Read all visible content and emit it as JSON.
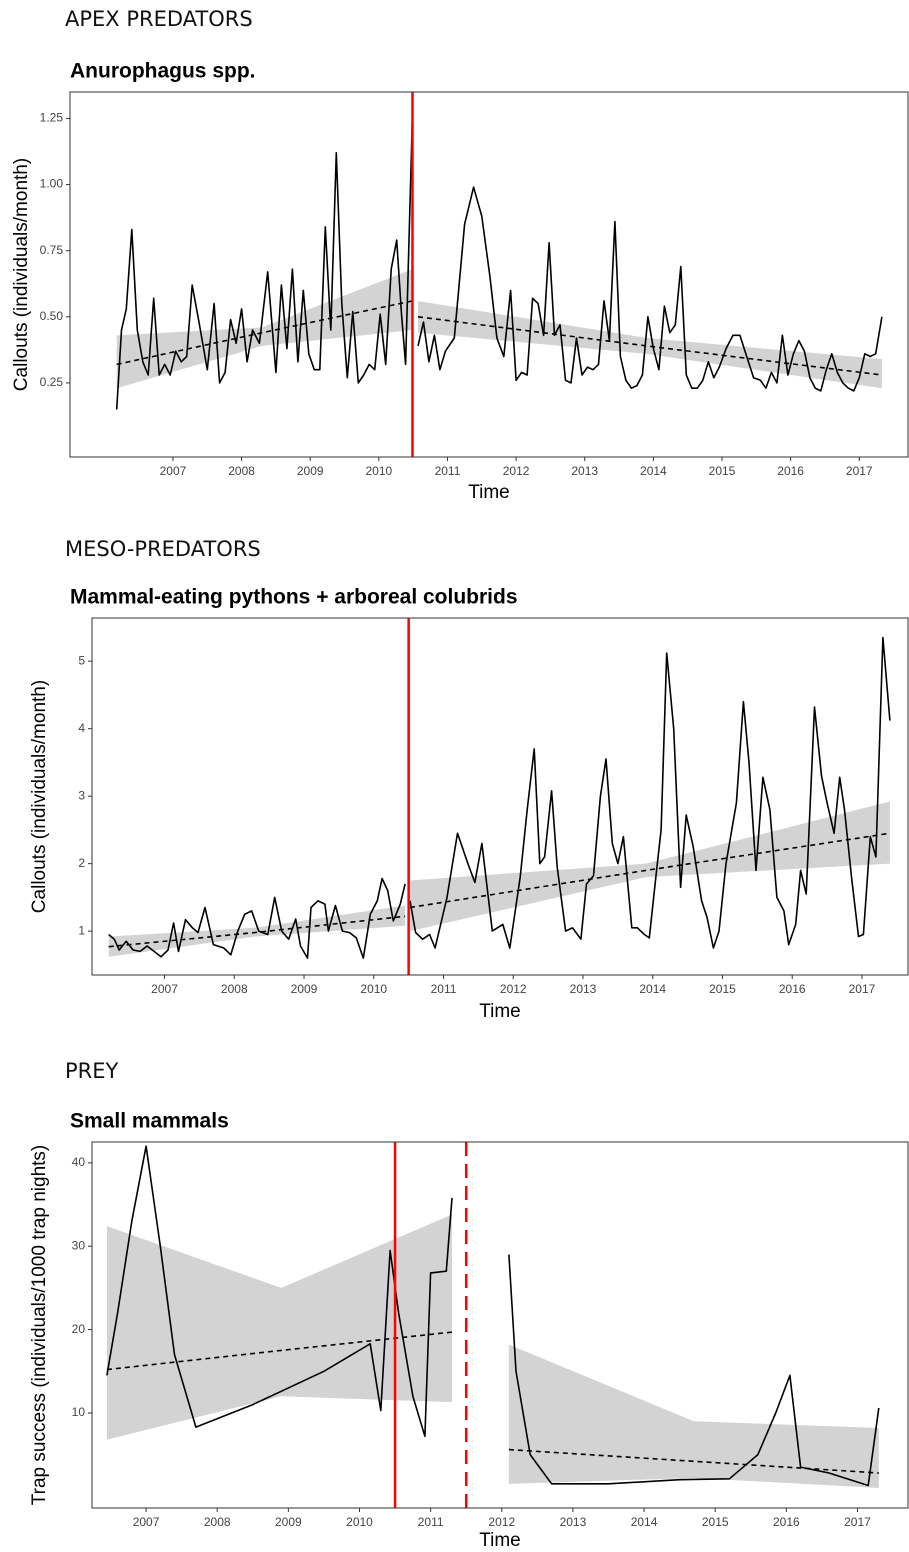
{
  "chart_data": [
    {
      "type": "line",
      "heading": "APEX PREDATORS",
      "title": "Anurophagus spp.",
      "x_label": "Time",
      "y_label": "Callouts (individuals/month)",
      "xlim": [
        2005.5,
        2017.71
      ],
      "xticks": [
        2007,
        2008,
        2009,
        2010,
        2011,
        2012,
        2013,
        2014,
        2015,
        2016,
        2017
      ],
      "ylim": [
        -0.03,
        1.35
      ],
      "yticks": [
        0.25,
        {
          "value": 0.5,
          "label": "0.50"
        },
        0.75,
        {
          "value": 1,
          "label": "1.00"
        },
        1.25
      ],
      "series": [
        {
          "color": "#000000",
          "x": [
            2006.18,
            2006.25,
            2006.32,
            2006.4,
            2006.48,
            2006.56,
            2006.64,
            2006.72,
            2006.8,
            2006.88,
            2006.96,
            2007.04,
            2007.12,
            2007.2,
            2007.28,
            2007.38,
            2007.5,
            2007.6,
            2007.68,
            2007.76,
            2007.84,
            2007.92,
            2008.0,
            2008.08,
            2008.16,
            2008.26,
            2008.38,
            2008.5,
            2008.58,
            2008.66,
            2008.74,
            2008.82,
            2008.9,
            2008.98,
            2009.06,
            2009.14,
            2009.22,
            2009.3,
            2009.38,
            2009.46,
            2009.54,
            2009.62,
            2009.7,
            2009.78,
            2009.86,
            2009.94,
            2010.02,
            2010.1,
            2010.18,
            2010.26,
            2010.33,
            2010.39,
            2010.44,
            2010.49
          ],
          "values": [
            0.15,
            0.45,
            0.53,
            0.83,
            0.45,
            0.33,
            0.28,
            0.57,
            0.28,
            0.32,
            0.28,
            0.37,
            0.33,
            0.35,
            0.62,
            0.48,
            0.3,
            0.55,
            0.25,
            0.29,
            0.49,
            0.4,
            0.53,
            0.33,
            0.45,
            0.4,
            0.67,
            0.29,
            0.62,
            0.38,
            0.68,
            0.33,
            0.6,
            0.36,
            0.3,
            0.3,
            0.84,
            0.45,
            1.12,
            0.55,
            0.27,
            0.52,
            0.25,
            0.28,
            0.32,
            0.3,
            0.51,
            0.32,
            0.68,
            0.79,
            0.51,
            0.32,
            0.79,
            1.27
          ]
        },
        {
          "color": "#000000",
          "x": [
            2010.57,
            2010.65,
            2010.73,
            2010.81,
            2010.89,
            2010.97,
            2011.1,
            2011.25,
            2011.38,
            2011.5,
            2011.62,
            2011.72,
            2011.82,
            2011.92,
            2012.0,
            2012.08,
            2012.16,
            2012.24,
            2012.32,
            2012.4,
            2012.48,
            2012.56,
            2012.64,
            2012.72,
            2012.8,
            2012.88,
            2012.96,
            2013.04,
            2013.12,
            2013.2,
            2013.28,
            2013.36,
            2013.44,
            2013.52,
            2013.6,
            2013.68,
            2013.76,
            2013.84,
            2013.92,
            2014.0,
            2014.08,
            2014.16,
            2014.24,
            2014.32,
            2014.4,
            2014.48,
            2014.56,
            2014.64,
            2014.72,
            2014.8,
            2014.88,
            2014.96,
            2015.06,
            2015.16,
            2015.26,
            2015.36,
            2015.46,
            2015.56,
            2015.64,
            2015.72,
            2015.8,
            2015.88,
            2015.96,
            2016.04,
            2016.12,
            2016.2,
            2016.28,
            2016.36,
            2016.44,
            2016.52,
            2016.6,
            2016.68,
            2016.76,
            2016.84,
            2016.92,
            2017.0,
            2017.08,
            2017.16,
            2017.24,
            2017.33
          ],
          "values": [
            0.39,
            0.48,
            0.33,
            0.43,
            0.3,
            0.37,
            0.42,
            0.85,
            0.99,
            0.88,
            0.65,
            0.42,
            0.35,
            0.6,
            0.26,
            0.29,
            0.28,
            0.57,
            0.55,
            0.43,
            0.78,
            0.43,
            0.47,
            0.26,
            0.25,
            0.42,
            0.28,
            0.31,
            0.3,
            0.32,
            0.56,
            0.41,
            0.86,
            0.35,
            0.26,
            0.23,
            0.24,
            0.28,
            0.5,
            0.38,
            0.3,
            0.54,
            0.44,
            0.47,
            0.69,
            0.28,
            0.23,
            0.23,
            0.26,
            0.33,
            0.27,
            0.31,
            0.38,
            0.43,
            0.43,
            0.35,
            0.27,
            0.26,
            0.23,
            0.29,
            0.25,
            0.43,
            0.28,
            0.36,
            0.41,
            0.37,
            0.27,
            0.23,
            0.22,
            0.3,
            0.36,
            0.29,
            0.25,
            0.23,
            0.22,
            0.27,
            0.36,
            0.35,
            0.36,
            0.5
          ]
        }
      ],
      "trends": [
        {
          "color": "#000000",
          "band_color": "#d3d3d3",
          "x": [
            2006.18,
            2008.3,
            2010.49
          ],
          "values": [
            0.32,
            0.44,
            0.56
          ],
          "lower": [
            0.23,
            0.39,
            0.45
          ],
          "upper": [
            0.43,
            0.46,
            0.68
          ]
        },
        {
          "color": "#000000",
          "band_color": "#d3d3d3",
          "x": [
            2010.57,
            2013.9,
            2017.33
          ],
          "values": [
            0.5,
            0.39,
            0.28
          ],
          "lower": [
            0.44,
            0.36,
            0.23
          ],
          "upper": [
            0.56,
            0.42,
            0.34
          ]
        }
      ],
      "vlines": [
        {
          "x": 2010.49,
          "color": "#ff0000",
          "dashed": false
        }
      ]
    },
    {
      "type": "line",
      "heading": "MESO-PREDATORS",
      "title": "Mammal-eating pythons + arboreal colubrids",
      "x_label": "Time",
      "y_label": "Callouts (individuals/month)",
      "xlim": [
        2005.96,
        2017.66
      ],
      "xticks": [
        2007,
        2008,
        2009,
        2010,
        2011,
        2012,
        2013,
        2014,
        2015,
        2016,
        2017
      ],
      "ylim": [
        0.35,
        5.64
      ],
      "yticks": [
        1,
        2,
        3,
        4,
        5
      ],
      "series": [
        {
          "color": "#000000",
          "x": [
            2006.2,
            2006.28,
            2006.35,
            2006.45,
            2006.55,
            2006.65,
            2006.75,
            2006.85,
            2006.95,
            2007.05,
            2007.13,
            2007.2,
            2007.3,
            2007.4,
            2007.48,
            2007.58,
            2007.7,
            2007.85,
            2007.95,
            2008.05,
            2008.15,
            2008.25,
            2008.35,
            2008.48,
            2008.58,
            2008.68,
            2008.78,
            2008.88,
            2008.95,
            2009.05,
            2009.1,
            2009.2,
            2009.3,
            2009.35,
            2009.45,
            2009.55,
            2009.65,
            2009.75,
            2009.85,
            2009.95,
            2010.05,
            2010.12,
            2010.2,
            2010.28,
            2010.38,
            2010.45
          ],
          "values": [
            0.95,
            0.88,
            0.72,
            0.85,
            0.72,
            0.7,
            0.78,
            0.7,
            0.62,
            0.72,
            1.12,
            0.7,
            1.17,
            1.05,
            0.98,
            1.35,
            0.8,
            0.75,
            0.65,
            1.0,
            1.25,
            1.3,
            1.0,
            0.95,
            1.5,
            1.0,
            0.88,
            1.18,
            0.78,
            0.6,
            1.35,
            1.45,
            1.4,
            1.0,
            1.38,
            1.0,
            0.98,
            0.9,
            0.6,
            1.25,
            1.45,
            1.78,
            1.6,
            1.15,
            1.4,
            1.7
          ]
        },
        {
          "color": "#000000",
          "x": [
            2010.52,
            2010.6,
            2010.7,
            2010.8,
            2010.88,
            2011.05,
            2011.2,
            2011.35,
            2011.45,
            2011.55,
            2011.7,
            2011.85,
            2011.95,
            2012.1,
            2012.2,
            2012.3,
            2012.38,
            2012.45,
            2012.55,
            2012.63,
            2012.75,
            2012.85,
            2012.97,
            2013.05,
            2013.15,
            2013.25,
            2013.33,
            2013.42,
            2013.5,
            2013.58,
            2013.7,
            2013.78,
            2013.88,
            2013.95,
            2014.05,
            2014.12,
            2014.2,
            2014.3,
            2014.4,
            2014.48,
            2014.58,
            2014.7,
            2014.78,
            2014.87,
            2014.95,
            2015.05,
            2015.2,
            2015.3,
            2015.38,
            2015.48,
            2015.58,
            2015.68,
            2015.78,
            2015.88,
            2015.95,
            2016.05,
            2016.12,
            2016.2,
            2016.32,
            2016.42,
            2016.5,
            2016.6,
            2016.68,
            2016.75,
            2016.85,
            2016.95,
            2017.02,
            2017.12,
            2017.2,
            2017.3,
            2017.4
          ],
          "values": [
            1.45,
            0.98,
            0.88,
            0.95,
            0.75,
            1.5,
            2.45,
            2.0,
            1.72,
            2.3,
            1.0,
            1.1,
            0.75,
            1.8,
            2.8,
            3.7,
            2.0,
            2.1,
            3.08,
            1.95,
            1.0,
            1.05,
            0.88,
            1.7,
            1.82,
            3.0,
            3.55,
            2.3,
            2.0,
            2.4,
            1.05,
            1.05,
            0.95,
            0.9,
            1.85,
            2.5,
            5.12,
            4.0,
            1.65,
            2.72,
            2.25,
            1.45,
            1.2,
            0.75,
            1.0,
            2.0,
            2.9,
            4.4,
            3.5,
            1.9,
            3.28,
            2.8,
            1.5,
            1.3,
            0.8,
            1.1,
            1.9,
            1.55,
            4.32,
            3.3,
            2.9,
            2.45,
            3.28,
            2.8,
            1.8,
            0.92,
            0.95,
            2.4,
            2.1,
            5.35,
            4.12
          ]
        }
      ],
      "trends": [
        {
          "color": "#000000",
          "band_color": "#d3d3d3",
          "x": [
            2006.2,
            2008.3,
            2010.45
          ],
          "values": [
            0.77,
            0.98,
            1.22
          ],
          "lower": [
            0.62,
            0.92,
            1.08
          ],
          "upper": [
            0.92,
            1.05,
            1.38
          ]
        },
        {
          "color": "#000000",
          "band_color": "#d3d3d3",
          "x": [
            2010.52,
            2013.9,
            2017.4
          ],
          "values": [
            1.35,
            1.9,
            2.45
          ],
          "lower": [
            1.0,
            1.8,
            2.0
          ],
          "upper": [
            1.75,
            2.0,
            2.92
          ]
        }
      ],
      "vlines": [
        {
          "x": 2010.5,
          "color": "#ff0000",
          "dashed": false
        }
      ]
    },
    {
      "type": "line",
      "heading": "PREY",
      "title": "Small mammals",
      "x_label": "Time",
      "y_label": "Trap success (individuals/1000 trap nights)",
      "xlim": [
        2006.24,
        2017.71
      ],
      "xticks": [
        2007,
        2008,
        2009,
        2010,
        2011,
        2012,
        2013,
        2014,
        2015,
        2016,
        2017
      ],
      "ylim": [
        -1.4,
        42.5
      ],
      "yticks": [
        10,
        20,
        30,
        40
      ],
      "series": [
        {
          "color": "#000000",
          "x": [
            2006.45,
            2006.6,
            2006.8,
            2007.0,
            2007.2,
            2007.4,
            2007.7,
            2008.5,
            2009.5,
            2010.15,
            2010.3,
            2010.43,
            2010.55,
            2010.75,
            2010.92,
            2011.0,
            2011.22,
            2011.3
          ],
          "values": [
            14.5,
            22,
            33,
            42,
            30,
            17,
            8.3,
            11,
            15,
            18.3,
            10.3,
            29.5,
            22,
            12,
            7.2,
            26.8,
            27,
            35.8
          ]
        },
        {
          "color": "#000000",
          "x": [
            2012.1,
            2012.2,
            2012.4,
            2012.7,
            2013.5,
            2014.5,
            2015.2,
            2015.6,
            2015.85,
            2016.05,
            2016.2,
            2016.6,
            2017.15,
            2017.3
          ],
          "values": [
            29,
            15,
            5,
            1.5,
            1.5,
            2,
            2.1,
            5,
            10,
            14.5,
            3.5,
            2.8,
            1.3,
            10.6
          ]
        }
      ],
      "trends": [
        {
          "color": "#000000",
          "band_color": "#d3d3d3",
          "x": [
            2006.45,
            2008.9,
            2011.3
          ],
          "values": [
            15.2,
            17.5,
            19.7
          ],
          "lower": [
            6.8,
            12,
            11.3
          ],
          "upper": [
            32.4,
            25,
            33.8
          ]
        },
        {
          "color": "#000000",
          "band_color": "#d3d3d3",
          "x": [
            2012.1,
            2014.7,
            2017.3
          ],
          "values": [
            5.6,
            4.2,
            2.8
          ],
          "lower": [
            1.5,
            2.2,
            1.0
          ],
          "upper": [
            18.2,
            9,
            8.2
          ]
        }
      ],
      "vlines": [
        {
          "x": 2010.5,
          "color": "#ff0000",
          "dashed": false
        },
        {
          "x": 2011.5,
          "color": "#ff0000",
          "dashed": true
        }
      ]
    }
  ]
}
